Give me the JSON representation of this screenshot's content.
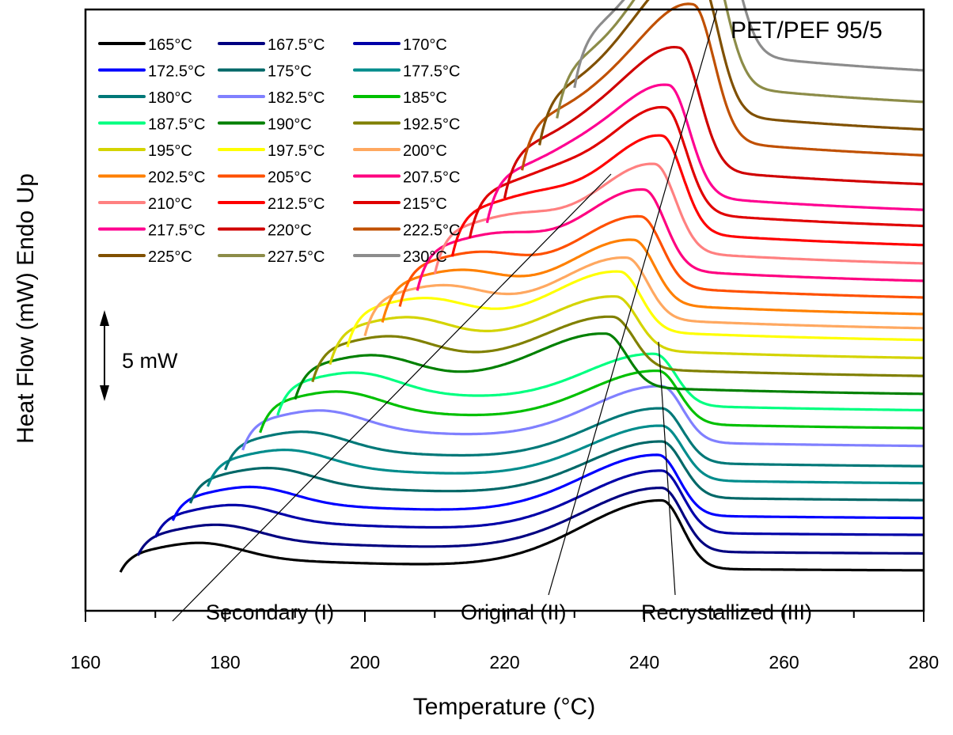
{
  "chart_data": {
    "type": "line",
    "title": "PET/PEF 95/5",
    "xlabel": "Temperature (°C)",
    "ylabel": "Heat Flow (mW) Endo Up",
    "xlim": [
      160,
      280
    ],
    "xticks": [
      160,
      180,
      200,
      220,
      240,
      260,
      280
    ],
    "x_minor_step": 10,
    "grid": false,
    "legend_placement": "top-left",
    "scale_bar": {
      "label": "5 mW",
      "value_mW": 5
    },
    "annotations": [
      {
        "text": "Secondary (I)",
        "x": 178,
        "line_from": [
          172,
          0
        ],
        "line_to": [
          233,
          0
        ]
      },
      {
        "text": "Original (II)",
        "x": 236,
        "line_from": [
          226,
          0
        ],
        "line_to": [
          250.5,
          0
        ]
      },
      {
        "text": "Recrystallized (III)",
        "x": 262,
        "line_from": [
          244.5,
          0
        ],
        "line_to": [
          242.5,
          0
        ]
      }
    ],
    "series": [
      {
        "name": "165°C",
        "color": "#000000",
        "start": 165,
        "baseline_offset": 0,
        "peak_T": 242.5,
        "peak_h": 4.4
      },
      {
        "name": "167.5°C",
        "color": "#000080",
        "start": 167.5,
        "baseline_offset": 1,
        "peak_T": 242.5,
        "peak_h": 4.1
      },
      {
        "name": "170°C",
        "color": "#0000a8",
        "start": 170,
        "baseline_offset": 2,
        "peak_T": 242.5,
        "peak_h": 4.0
      },
      {
        "name": "172.5°C",
        "color": "#0000ff",
        "start": 172.5,
        "baseline_offset": 3,
        "peak_T": 242,
        "peak_h": 3.9
      },
      {
        "name": "175°C",
        "color": "#006868",
        "start": 175,
        "baseline_offset": 4,
        "peak_T": 242.5,
        "peak_h": 3.6
      },
      {
        "name": "177.5°C",
        "color": "#008c8c",
        "start": 177.5,
        "baseline_offset": 5,
        "peak_T": 242.5,
        "peak_h": 3.5
      },
      {
        "name": "180°C",
        "color": "#007878",
        "start": 180,
        "baseline_offset": 6,
        "peak_T": 242.5,
        "peak_h": 3.5
      },
      {
        "name": "182.5°C",
        "color": "#8080ff",
        "start": 182.5,
        "baseline_offset": 7,
        "peak_T": 242.5,
        "peak_h": 3.6
      },
      {
        "name": "185°C",
        "color": "#00c000",
        "start": 185,
        "baseline_offset": 8,
        "peak_T": 242,
        "peak_h": 3.4
      },
      {
        "name": "187.5°C",
        "color": "#00ff80",
        "start": 187.5,
        "baseline_offset": 9,
        "peak_T": 241.5,
        "peak_h": 3.3
      },
      {
        "name": "190°C",
        "color": "#008000",
        "start": 190,
        "baseline_offset": 10,
        "peak_T": 234.5,
        "peak_h": 3.4
      },
      {
        "name": "192.5°C",
        "color": "#808000",
        "start": 192.5,
        "baseline_offset": 11,
        "peak_T": 235.5,
        "peak_h": 3.3
      },
      {
        "name": "195°C",
        "color": "#d4d400",
        "start": 195,
        "baseline_offset": 12,
        "peak_T": 236,
        "peak_h": 3.4
      },
      {
        "name": "197.5°C",
        "color": "#ffff00",
        "start": 197.5,
        "baseline_offset": 13,
        "peak_T": 236.5,
        "peak_h": 3.8
      },
      {
        "name": "200°C",
        "color": "#ffa860",
        "start": 200,
        "baseline_offset": 14,
        "peak_T": 237.5,
        "peak_h": 3.9
      },
      {
        "name": "202.5°C",
        "color": "#ff8000",
        "start": 202.5,
        "baseline_offset": 15,
        "peak_T": 238.5,
        "peak_h": 4.1
      },
      {
        "name": "205°C",
        "color": "#ff5000",
        "start": 205,
        "baseline_offset": 16,
        "peak_T": 239.5,
        "peak_h": 4.5
      },
      {
        "name": "207.5°C",
        "color": "#ff0080",
        "start": 207.5,
        "baseline_offset": 17,
        "peak_T": 240,
        "peak_h": 5.1
      },
      {
        "name": "210°C",
        "color": "#ff8080",
        "start": 210,
        "baseline_offset": 18,
        "peak_T": 241.5,
        "peak_h": 5.6
      },
      {
        "name": "212.5°C",
        "color": "#ff0000",
        "start": 212.5,
        "baseline_offset": 19,
        "peak_T": 242.5,
        "peak_h": 6.2
      },
      {
        "name": "215°C",
        "color": "#e00000",
        "start": 215,
        "baseline_offset": 20,
        "peak_T": 243,
        "peak_h": 6.7
      },
      {
        "name": "217.5°C",
        "color": "#ff0090",
        "start": 217.5,
        "baseline_offset": 21,
        "peak_T": 243.5,
        "peak_h": 7.0
      },
      {
        "name": "220°C",
        "color": "#d00000",
        "start": 220,
        "baseline_offset": 22,
        "peak_T": 245,
        "peak_h": 7.7
      },
      {
        "name": "222.5°C",
        "color": "#c05000",
        "start": 222.5,
        "baseline_offset": 23,
        "peak_T": 247,
        "peak_h": 8.6
      },
      {
        "name": "225°C",
        "color": "#805000",
        "start": 225,
        "baseline_offset": 24,
        "peak_T": 247.5,
        "peak_h": 9.0
      },
      {
        "name": "227.5°C",
        "color": "#8c8c48",
        "start": 227.5,
        "baseline_offset": 25,
        "peak_T": 248.5,
        "peak_h": 9.1
      },
      {
        "name": "230°C",
        "color": "#8c8c8c",
        "start": 230,
        "baseline_offset": 26,
        "peak_T": 250,
        "peak_h": 8.9
      }
    ]
  }
}
